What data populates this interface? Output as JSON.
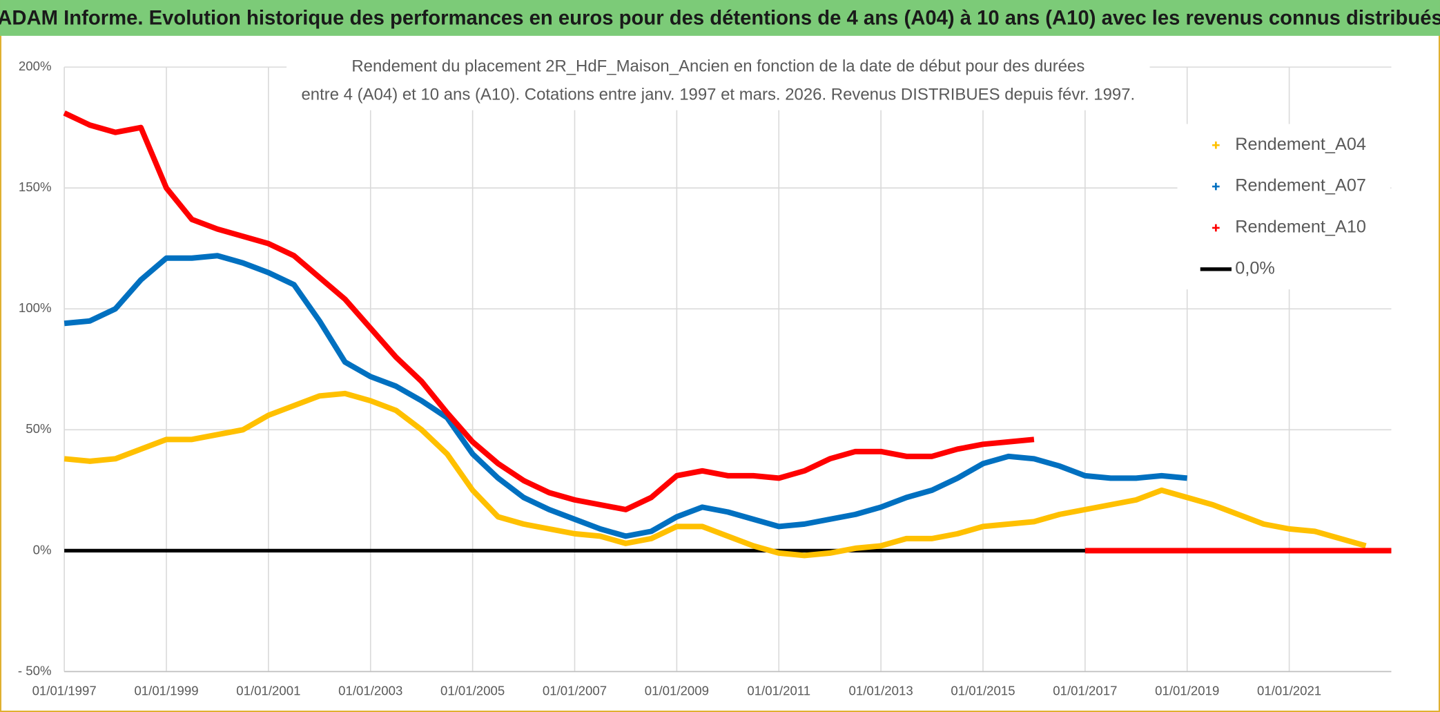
{
  "header": {
    "title": "ADAM Informe. Evolution historique des performances en euros pour des détentions de 4 ans (A04) à 10 ans (A10) avec les revenus connus distribués"
  },
  "chart_data": {
    "type": "line",
    "title": [
      "Rendement du placement 2R_HdF_Maison_Ancien en fonction de la date de début pour des durées",
      "entre 4 (A04) et 10 ans (A10). Cotations entre janv. 1997 et mars. 2026. Revenus DISTRIBUES depuis févr. 1997."
    ],
    "x": [
      "01/01/1997",
      "01/07/1997",
      "01/01/1998",
      "01/07/1998",
      "01/01/1999",
      "01/07/1999",
      "01/01/2000",
      "01/07/2000",
      "01/01/2001",
      "01/07/2001",
      "01/01/2002",
      "01/07/2002",
      "01/01/2003",
      "01/07/2003",
      "01/01/2004",
      "01/07/2004",
      "01/01/2005",
      "01/07/2005",
      "01/01/2006",
      "01/07/2006",
      "01/01/2007",
      "01/07/2007",
      "01/01/2008",
      "01/07/2008",
      "01/01/2009",
      "01/07/2009",
      "01/01/2010",
      "01/07/2010",
      "01/01/2011",
      "01/07/2011",
      "01/01/2012",
      "01/07/2012",
      "01/01/2013",
      "01/07/2013",
      "01/01/2014",
      "01/07/2014",
      "01/01/2015",
      "01/07/2015",
      "01/01/2016",
      "01/07/2016",
      "01/01/2017",
      "01/07/2017",
      "01/01/2018",
      "01/07/2018",
      "01/01/2019",
      "01/07/2019",
      "01/01/2020",
      "01/07/2020",
      "01/01/2021",
      "01/07/2021",
      "01/01/2022",
      "01/07/2022",
      "01/01/2023"
    ],
    "series": [
      {
        "name": "0,0%",
        "color": "#000000",
        "style": "line",
        "values": [
          0,
          0,
          0,
          0,
          0,
          0,
          0,
          0,
          0,
          0,
          0,
          0,
          0,
          0,
          0,
          0,
          0,
          0,
          0,
          0,
          0,
          0,
          0,
          0,
          0,
          0,
          0,
          0,
          0,
          0,
          0,
          0,
          0,
          0,
          0,
          0,
          0,
          0,
          0,
          0,
          0,
          0,
          0,
          0,
          0,
          0,
          0,
          0,
          0,
          0,
          0,
          0,
          0
        ]
      },
      {
        "name": "Rendement_A04",
        "color": "#ffc000",
        "style": "marker",
        "values": [
          38,
          37,
          38,
          42,
          46,
          46,
          48,
          50,
          56,
          60,
          64,
          65,
          62,
          58,
          50,
          40,
          25,
          14,
          11,
          9,
          7,
          6,
          3,
          5,
          10,
          10,
          6,
          2,
          -1,
          -2,
          -1,
          1,
          2,
          5,
          5,
          7,
          10,
          11,
          12,
          15,
          17,
          19,
          21,
          25,
          22,
          19,
          15,
          11,
          9,
          8,
          5,
          2,
          null
        ]
      },
      {
        "name": "Rendement_A07",
        "color": "#0070c0",
        "style": "marker",
        "values": [
          94,
          95,
          100,
          112,
          121,
          121,
          122,
          119,
          115,
          110,
          95,
          78,
          72,
          68,
          62,
          55,
          40,
          30,
          22,
          17,
          13,
          9,
          6,
          8,
          14,
          18,
          16,
          13,
          10,
          11,
          13,
          15,
          18,
          22,
          25,
          30,
          36,
          39,
          38,
          35,
          31,
          30,
          30,
          31,
          30,
          null,
          null,
          null,
          null,
          null,
          null,
          null,
          null
        ]
      },
      {
        "name": "Rendement_A10",
        "color": "#ff0000",
        "style": "marker",
        "values": [
          181,
          176,
          173,
          175,
          150,
          137,
          133,
          130,
          127,
          122,
          113,
          104,
          92,
          80,
          70,
          57,
          45,
          36,
          29,
          24,
          21,
          19,
          17,
          22,
          31,
          33,
          31,
          31,
          30,
          33,
          38,
          41,
          41,
          39,
          39,
          42,
          44,
          45,
          46,
          null,
          0,
          0,
          0,
          0,
          0,
          0,
          0,
          0,
          0,
          0,
          0,
          0,
          0
        ]
      }
    ],
    "legend_order": [
      1,
      2,
      3,
      0
    ],
    "xlim": [
      "01/01/1997",
      "01/01/2023"
    ],
    "xticks": [
      "01/01/1997",
      "01/01/1999",
      "01/01/2001",
      "01/01/2003",
      "01/01/2005",
      "01/01/2007",
      "01/01/2009",
      "01/01/2011",
      "01/01/2013",
      "01/01/2015",
      "01/01/2017",
      "01/01/2019",
      "01/01/2021"
    ],
    "ylim": [
      -50,
      200
    ],
    "yticks": [
      {
        "value": -50,
        "label": "- 50%"
      },
      {
        "value": 0,
        "label": "0%"
      },
      {
        "value": 50,
        "label": "50%"
      },
      {
        "value": 100,
        "label": "100%"
      },
      {
        "value": 150,
        "label": "150%"
      },
      {
        "value": 200,
        "label": "200%"
      }
    ],
    "grid": true
  }
}
